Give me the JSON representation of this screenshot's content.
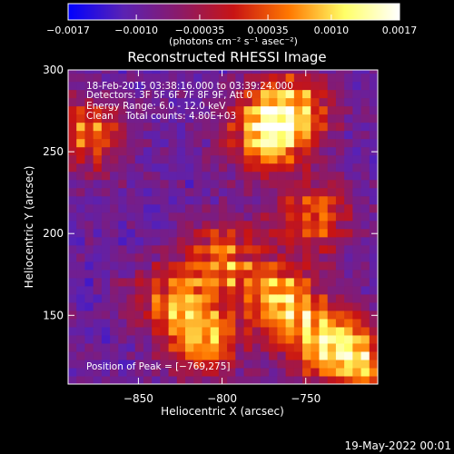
{
  "colorbar": {
    "ticks": [
      {
        "value": -0.0017,
        "label": "−0.0017"
      },
      {
        "value": -0.001,
        "label": "−0.0010"
      },
      {
        "value": -0.00035,
        "label": "−0.00035"
      },
      {
        "value": 0.00035,
        "label": "0.00035"
      },
      {
        "value": 0.001,
        "label": "0.0010"
      },
      {
        "value": 0.0017,
        "label": "0.0017"
      }
    ],
    "range": [
      -0.0017,
      0.0017
    ],
    "units": "(photons cm⁻² s⁻¹ asec⁻²)",
    "colors": [
      "#0000ff",
      "#5a22b4",
      "#8a1a6a",
      "#c81414",
      "#ff7800",
      "#ffff66",
      "#ffffff"
    ]
  },
  "chart_data": {
    "type": "heatmap",
    "title": "Reconstructed RHESSI Image",
    "xlabel": "Heliocentric X (arcsec)",
    "ylabel": "Heliocentric Y (arcsec)",
    "xlim": [
      -892,
      -707
    ],
    "ylim": [
      108,
      300
    ],
    "x_ticks": [
      {
        "value": -850,
        "label": "−850"
      },
      {
        "value": -800,
        "label": "−800"
      },
      {
        "value": -750,
        "label": "−750"
      }
    ],
    "y_ticks": [
      {
        "value": 300,
        "label": "300"
      },
      {
        "value": 250,
        "label": "250"
      },
      {
        "value": 200,
        "label": "200"
      },
      {
        "value": 150,
        "label": "150"
      }
    ],
    "annotations": [
      "18-Feb-2015 03:38:16.000 to 03:39:24.000",
      "Detectors: 3F 5F 6F 7F 8F 9F, Att 0",
      "Energy Range: 6.0 - 12.0 keV",
      "Clean    Total counts: 4.80E+03"
    ],
    "peak_label": "Position of Peak = [−769,275]",
    "peak": {
      "x": -769,
      "y": 275
    },
    "bright_regions": [
      {
        "x": -760,
        "y": 275,
        "level": 1.0
      },
      {
        "x": -775,
        "y": 260,
        "level": 0.85
      },
      {
        "x": -880,
        "y": 260,
        "level": 0.7
      },
      {
        "x": -765,
        "y": 160,
        "level": 0.95
      },
      {
        "x": -740,
        "y": 135,
        "level": 0.9
      },
      {
        "x": -715,
        "y": 120,
        "level": 0.85
      },
      {
        "x": -800,
        "y": 185,
        "level": 0.75
      },
      {
        "x": -830,
        "y": 160,
        "level": 0.7
      },
      {
        "x": -810,
        "y": 135,
        "level": 0.8
      },
      {
        "x": -745,
        "y": 210,
        "level": 0.7
      }
    ]
  },
  "footer": {
    "timestamp": "19-May-2022 00:01"
  }
}
